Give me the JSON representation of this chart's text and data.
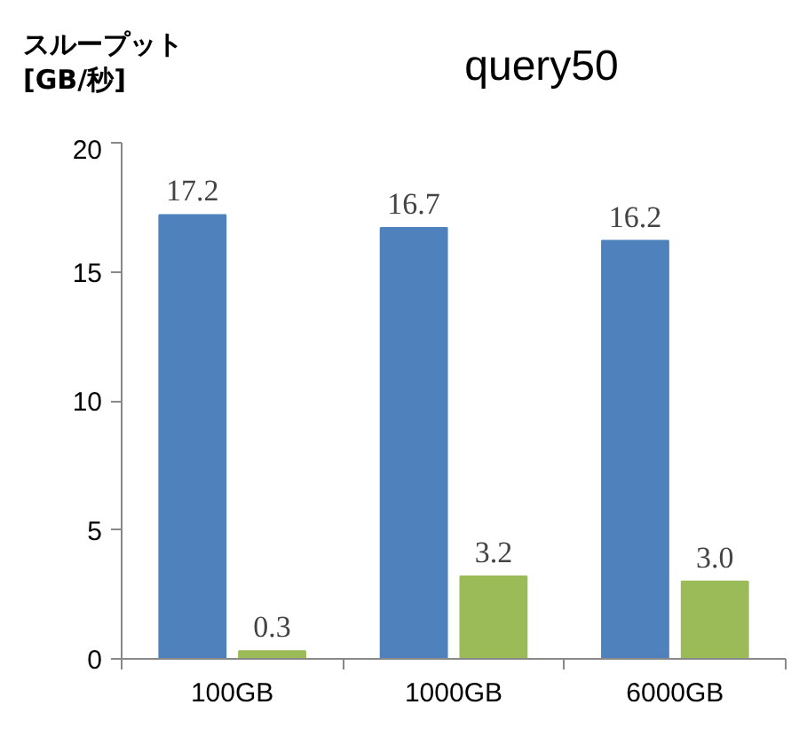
{
  "chart_data": {
    "type": "bar",
    "title": "query50",
    "ylabel": "スループット\n[GB/秒]",
    "categories": [
      "100GB",
      "1000GB",
      "6000GB"
    ],
    "series": [
      {
        "color": "#4f81bd",
        "values": [
          17.2,
          16.7,
          16.2
        ]
      },
      {
        "color": "#9bbb59",
        "values": [
          0.3,
          3.2,
          3.0
        ],
        "value_labels": [
          "0.3",
          "3.2",
          "3.0"
        ]
      }
    ],
    "ylim": [
      0,
      20
    ],
    "yticks": [
      0,
      5,
      10,
      15,
      20
    ],
    "grid": false,
    "data_labels": true
  }
}
